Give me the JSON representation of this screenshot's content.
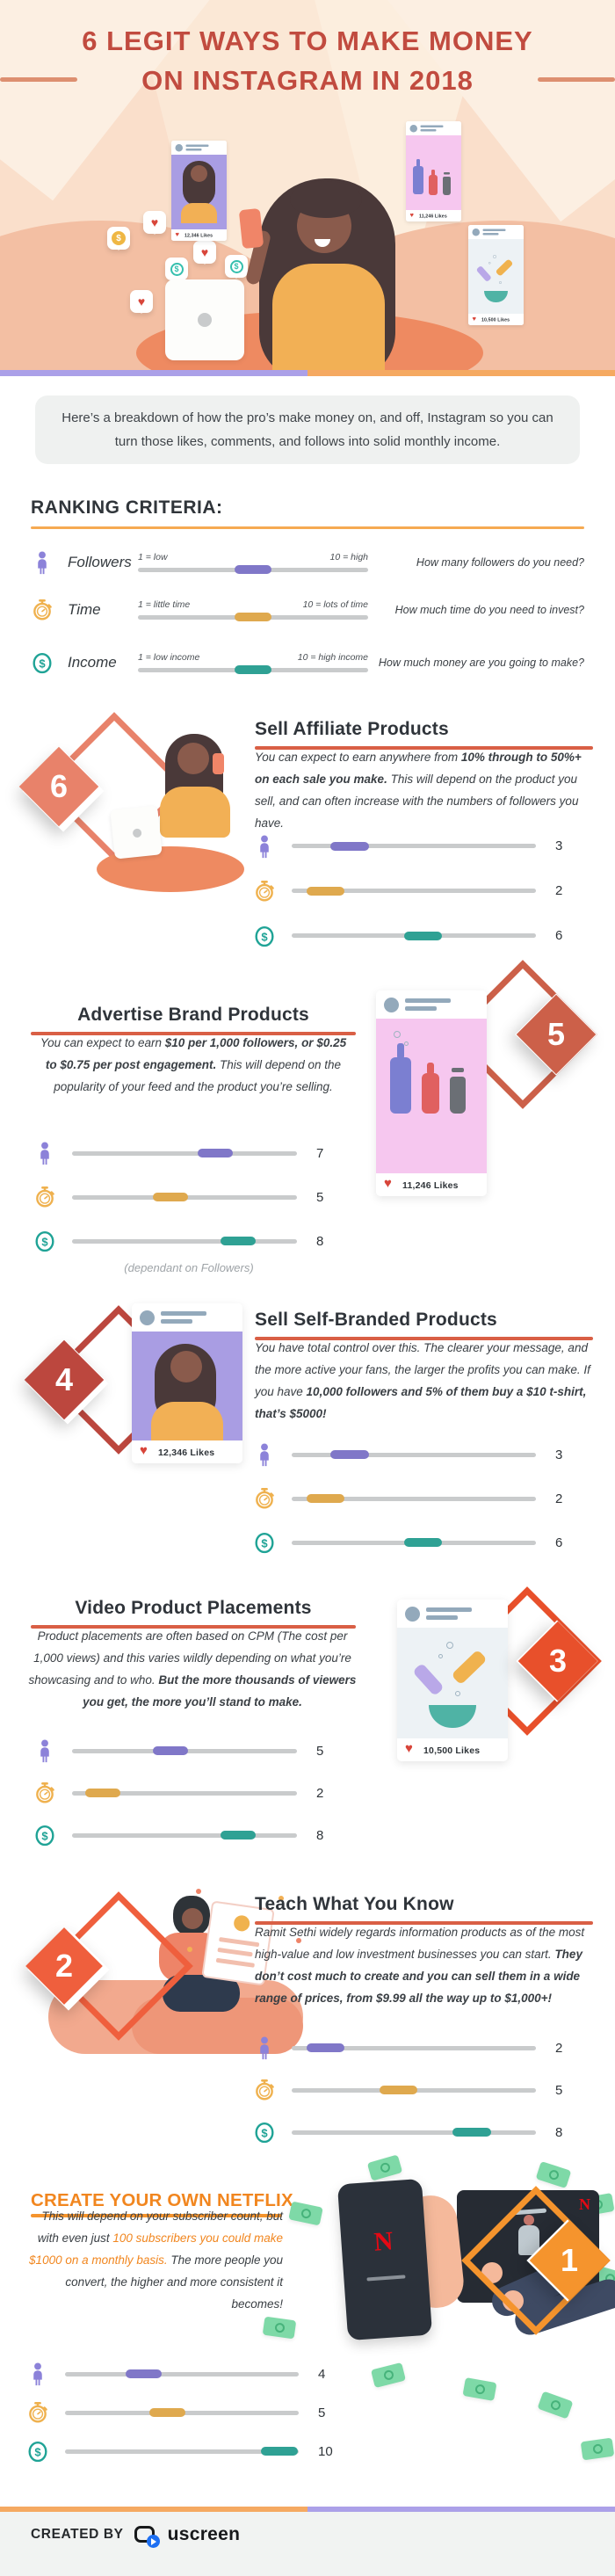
{
  "palette": {
    "title_red": "#C14B3F",
    "underline_red": "#D95F45",
    "orange_accent": "#F6AA52",
    "purple": "#8077C8",
    "gold": "#DFA94E",
    "teal": "#2FA194",
    "netflix_orange": "#F1861F",
    "uscreen_blue": "#1D6FF2"
  },
  "hero": {
    "title_line1": "6 LEGIT WAYS TO MAKE MONEY",
    "title_line2": "ON INSTAGRAM IN 2018",
    "cards": [
      {
        "likes": "12,346 Likes"
      },
      {
        "likes": "11,246 Likes"
      },
      {
        "likes": "10,500 Likes"
      }
    ]
  },
  "intro": {
    "text": "Here’s a breakdown of how the pro’s make money on, and off, Instagram so you can turn those likes, comments, and follows into solid monthly income."
  },
  "ranking": {
    "heading": "RANKING CRITERIA:",
    "criteria": [
      {
        "label": "Followers",
        "low": "1 = low",
        "high": "10 = high",
        "question": "How many followers do you need?",
        "color": "#8077C8"
      },
      {
        "label": "Time",
        "low": "1 = little time",
        "high": "10 = lots of time",
        "question": "How much time do you need to invest?",
        "color": "#DFA94E"
      },
      {
        "label": "Income",
        "low": "1 = low income",
        "high": "10 = high income",
        "question": "How much money are you going to make?",
        "color": "#2FA194"
      }
    ]
  },
  "sections": [
    {
      "number": "6",
      "title": "Sell Affiliate Products",
      "accent": "#E8826A",
      "underline": "#D95F45",
      "body": [
        {
          "t": "You can expect to earn anywhere from "
        },
        {
          "t": "10% through to 50%+ on each sale you make.",
          "b": true
        },
        {
          "t": " This will depend on the product you sell, and can often increase with the numbers of followers you have."
        }
      ],
      "ratings": {
        "followers": 3,
        "time": 2,
        "income": 6
      }
    },
    {
      "number": "5",
      "title": "Advertise Brand Products",
      "accent": "#CC6049",
      "underline": "#D95F45",
      "body": [
        {
          "t": "You can expect to earn "
        },
        {
          "t": "$10 per 1,000 followers, or $0.25 to $0.75 per post engagement.",
          "b": true
        },
        {
          "t": " This will depend on the popularity of your feed and the product you’re selling."
        }
      ],
      "ratings": {
        "followers": 7,
        "time": 5,
        "income": 8
      },
      "note": "(dependant on Followers)",
      "card_likes": "11,246 Likes"
    },
    {
      "number": "4",
      "title": "Sell Self-Branded Products",
      "accent": "#BC473E",
      "underline": "#D95F45",
      "body": [
        {
          "t": "You have total control over this. The clearer your message, and the more active your fans, the larger the profits you can make. If you have "
        },
        {
          "t": "10,000 followers and 5% of them buy a $10 t-shirt, that’s $5000!",
          "b": true
        }
      ],
      "ratings": {
        "followers": 3,
        "time": 2,
        "income": 6
      },
      "card_likes": "12,346 Likes"
    },
    {
      "number": "3",
      "title": "Video Product Placements",
      "accent": "#E8502B",
      "underline": "#D95F45",
      "body": [
        {
          "t": "Product placements are often based on CPM (The cost per 1,000 views) and this varies wildly depending on what you’re showcasing and to who. "
        },
        {
          "t": "But the more thousands of viewers you get, the more you’ll stand to make.",
          "b": true
        }
      ],
      "ratings": {
        "followers": 5,
        "time": 2,
        "income": 8
      },
      "card_likes": "10,500 Likes"
    },
    {
      "number": "2",
      "title": "Teach What You Know",
      "accent": "#EF5F3D",
      "underline": "#D95F45",
      "body": [
        {
          "t": "Ramit Sethi widely regards information products as of the most high-value and low investment businesses you can start. "
        },
        {
          "t": "They don’t cost much to create and you can sell them in a wide range of prices,  from $9.99 all the way up to $1,000+!",
          "b": true
        }
      ],
      "ratings": {
        "followers": 2,
        "time": 5,
        "income": 8
      }
    },
    {
      "number": "1",
      "title": "CREATE YOUR OWN NETFLIX",
      "accent": "#F5942D",
      "underline": "#F5942D",
      "title_color": "#F1861F",
      "body": [
        {
          "t": "This will depend on your subscriber count, but with even just "
        },
        {
          "t": "100 subscribers you could make $1000 on a monthly basis.",
          "hl": true
        },
        {
          "t": " The more people you convert, the higher and more consistent it becomes!"
        }
      ],
      "ratings": {
        "followers": 4,
        "time": 5,
        "income": 10
      },
      "illustration": {
        "phone_letter": "N",
        "tv_letter": "N"
      }
    }
  ],
  "footer": {
    "created_by": "CREATED BY",
    "brand": "uscreen"
  }
}
